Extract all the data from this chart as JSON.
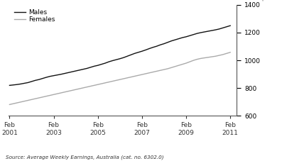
{
  "males": [
    820,
    823,
    826,
    830,
    835,
    840,
    848,
    856,
    862,
    870,
    878,
    885,
    890,
    895,
    900,
    906,
    912,
    918,
    924,
    930,
    936,
    942,
    950,
    958,
    964,
    972,
    980,
    990,
    998,
    1005,
    1012,
    1020,
    1030,
    1040,
    1050,
    1058,
    1066,
    1075,
    1085,
    1094,
    1102,
    1112,
    1120,
    1130,
    1140,
    1148,
    1156,
    1164,
    1170,
    1178,
    1186,
    1194,
    1200,
    1205,
    1210,
    1215,
    1220,
    1226,
    1234,
    1242,
    1250
  ],
  "females": [
    682,
    688,
    694,
    700,
    706,
    712,
    718,
    724,
    730,
    736,
    742,
    748,
    754,
    760,
    766,
    772,
    778,
    784,
    790,
    796,
    802,
    808,
    814,
    820,
    826,
    832,
    838,
    844,
    850,
    856,
    862,
    868,
    874,
    880,
    886,
    892,
    898,
    904,
    910,
    916,
    922,
    928,
    934,
    940,
    948,
    956,
    964,
    972,
    980,
    990,
    1000,
    1008,
    1014,
    1018,
    1022,
    1026,
    1030,
    1036,
    1042,
    1050,
    1058
  ],
  "x_start": 2001.083,
  "x_end": 2011.083,
  "n_points": 61,
  "x_ticks": [
    2001.083,
    2003.083,
    2005.083,
    2007.083,
    2009.083,
    2011.083
  ],
  "x_tick_labels": [
    "Feb\n2001",
    "Feb\n2003",
    "Feb\n2005",
    "Feb\n2007",
    "Feb\n2009",
    "Feb\n2011"
  ],
  "y_ticks": [
    600,
    800,
    1000,
    1200,
    1400
  ],
  "ylim": [
    600,
    1400
  ],
  "males_color": "#111111",
  "females_color": "#aaaaaa",
  "source_text": "Source: Average Weekly Earnings, Australia (cat. no. 6302.0)",
  "ylabel": "$",
  "legend_males": "Males",
  "legend_females": "Females",
  "line_width": 1.0,
  "bg_color": "#ffffff"
}
